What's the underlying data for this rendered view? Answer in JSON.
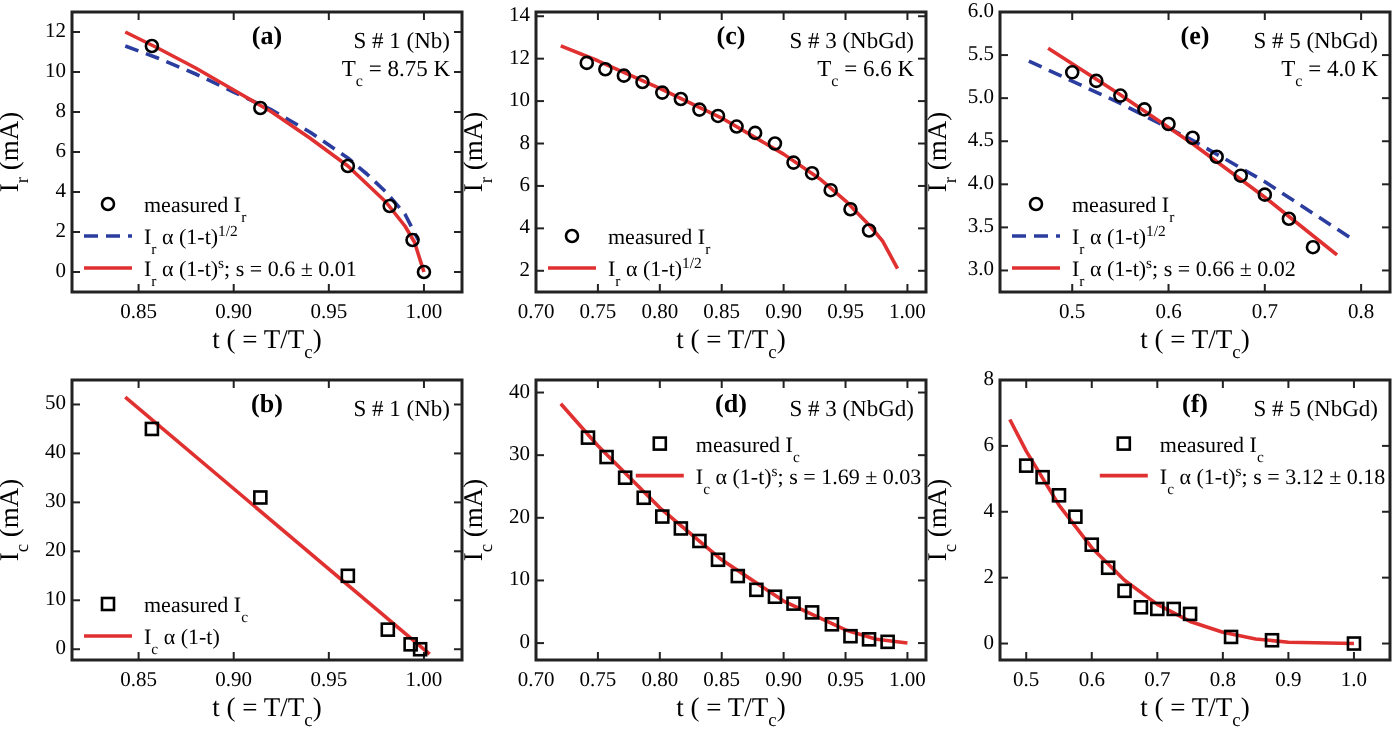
{
  "chart_data": [
    {
      "type": "scatter",
      "xlabel": "t ( = T/T$_{c}$)",
      "ylabel": "I$_{r}$ (mA)",
      "xlim": [
        0.815,
        1.02
      ],
      "ylim": [
        -1,
        13
      ],
      "xticks": [
        0.85,
        {
          "value": 0.9,
          "label": "0.90"
        },
        0.95,
        {
          "value": 1,
          "label": "1.00"
        }
      ],
      "yticks": [
        0,
        2,
        4,
        6,
        8,
        10,
        12
      ],
      "legend": "bottom left",
      "annotations": [
        "(a)",
        "S # 1 (Nb)",
        "T$_{c}$ = 8.75 K"
      ],
      "series": [
        {
          "name": "measured I$_{r}$",
          "marker": "circle",
          "color": "#000000",
          "x": [
            0.857,
            0.914,
            0.96,
            0.982,
            0.994,
            1.0
          ],
          "values": [
            11.3,
            8.2,
            5.3,
            3.3,
            1.6,
            0
          ]
        },
        {
          "name": "I$_{r}$ α (1-t)$^{1/2}$",
          "type": "line",
          "line_style": "dashed",
          "color": "#2b3d9e",
          "x": [
            0.843,
            0.86,
            0.88,
            0.9,
            0.92,
            0.94,
            0.96,
            0.97,
            0.98,
            0.99,
            0.997
          ],
          "values": [
            11.3,
            10.7,
            9.9,
            9.0,
            8.1,
            7.0,
            5.7,
            4.9,
            4.0,
            2.9,
            1.6
          ]
        },
        {
          "name": "I$_{r}$ α (1-t)$^{s}$;  s = 0.6 ± 0.01",
          "type": "line",
          "line_style": "solid",
          "color": "#e03030",
          "x": [
            0.843,
            0.86,
            0.88,
            0.9,
            0.92,
            0.94,
            0.96,
            0.97,
            0.98,
            0.99,
            0.995,
            1.0
          ],
          "values": [
            12.0,
            11.2,
            10.2,
            9.1,
            8.0,
            6.7,
            5.3,
            4.4,
            3.5,
            2.3,
            1.5,
            0
          ]
        }
      ]
    },
    {
      "type": "scatter",
      "xlabel": "t ( = T/T$_{c}$)",
      "ylabel": "I$_{r}$ (mA)",
      "xlim": [
        0.7,
        1.015
      ],
      "ylim": [
        1,
        14.2
      ],
      "xticks": [
        {
          "value": 0.7,
          "label": "0.70"
        },
        0.75,
        {
          "value": 0.8,
          "label": "0.80"
        },
        0.85,
        {
          "value": 0.9,
          "label": "0.90"
        },
        0.95,
        {
          "value": 1,
          "label": "1.00"
        }
      ],
      "yticks": [
        2,
        4,
        6,
        8,
        10,
        12,
        14
      ],
      "legend": "bottom left",
      "annotations": [
        "(c)",
        "S # 3 (NbGd)",
        "T$_{c}$ = 6.6 K"
      ],
      "series": [
        {
          "name": "measured I$_{r}$",
          "marker": "circle",
          "color": "#000000",
          "x": [
            0.741,
            0.756,
            0.771,
            0.786,
            0.802,
            0.817,
            0.832,
            0.847,
            0.862,
            0.877,
            0.893,
            0.908,
            0.923,
            0.938,
            0.954,
            0.969
          ],
          "values": [
            11.8,
            11.5,
            11.2,
            10.9,
            10.4,
            10.1,
            9.6,
            9.3,
            8.8,
            8.5,
            8.0,
            7.1,
            6.6,
            5.8,
            4.9,
            3.9
          ]
        },
        {
          "name": "I$_{r}$ α (1-t)$^{1/2}$",
          "type": "line",
          "line_style": "solid",
          "color": "#e03030",
          "x": [
            0.72,
            0.75,
            0.8,
            0.85,
            0.9,
            0.93,
            0.95,
            0.97,
            0.98,
            0.992
          ],
          "values": [
            12.6,
            11.9,
            10.6,
            9.2,
            7.5,
            6.3,
            5.3,
            4.1,
            3.4,
            2.1
          ]
        }
      ]
    },
    {
      "type": "scatter",
      "xlabel": "t ( = T/T$_{c}$)",
      "ylabel": "I$_{r}$ (mA)",
      "xlim": [
        0.425,
        0.83
      ],
      "ylim": [
        2.75,
        6.0
      ],
      "xticks": [
        0.5,
        0.6,
        0.7,
        0.8
      ],
      "yticks": [
        {
          "value": 3,
          "label": "3.0"
        },
        3.5,
        {
          "value": 4,
          "label": "4.0"
        },
        4.5,
        {
          "value": 5,
          "label": "5.0"
        },
        5.5,
        {
          "value": 6,
          "label": "6.0"
        }
      ],
      "legend": "bottom left",
      "annotations": [
        "(e)",
        "S # 5 (NbGd)",
        "T$_{c}$ = 4.0 K"
      ],
      "series": [
        {
          "name": "measured I$_{r}$",
          "marker": "circle",
          "color": "#000000",
          "x": [
            0.5,
            0.525,
            0.55,
            0.575,
            0.6,
            0.625,
            0.65,
            0.675,
            0.7,
            0.725,
            0.75
          ],
          "values": [
            5.3,
            5.2,
            5.03,
            4.87,
            4.7,
            4.54,
            4.32,
            4.1,
            3.88,
            3.6,
            3.27
          ]
        },
        {
          "name": "I$_{r}$ α (1-t)$^{1/2}$",
          "type": "line",
          "line_style": "dashed",
          "color": "#2b3d9e",
          "x": [
            0.455,
            0.55,
            0.625,
            0.7,
            0.79
          ],
          "values": [
            5.43,
            4.94,
            4.51,
            4.03,
            3.37
          ]
        },
        {
          "name": "I$_{r}$ α (1-t)$^{s}$;  s = 0.66 ± 0.02",
          "type": "line",
          "line_style": "solid",
          "color": "#e03030",
          "x": [
            0.475,
            0.55,
            0.625,
            0.7,
            0.775
          ],
          "values": [
            5.58,
            5.04,
            4.47,
            3.85,
            3.18
          ]
        }
      ]
    },
    {
      "type": "scatter",
      "xlabel": "t ( = T/T$_{c}$)",
      "ylabel": "I$_{c}$ (mA)",
      "xlim": [
        0.815,
        1.02
      ],
      "ylim": [
        -2.2,
        55
      ],
      "xticks": [
        0.85,
        {
          "value": 0.9,
          "label": "0.90"
        },
        0.95,
        {
          "value": 1,
          "label": "1.00"
        }
      ],
      "yticks": [
        0,
        10,
        20,
        30,
        40,
        50
      ],
      "legend": "bottom left",
      "annotations": [
        "(b)",
        "S # 1 (Nb)"
      ],
      "series": [
        {
          "name": "measured I$_{c}$",
          "marker": "square",
          "color": "#000000",
          "x": [
            0.857,
            0.914,
            0.96,
            0.981,
            0.993,
            0.998
          ],
          "values": [
            45,
            31,
            15,
            4,
            1,
            0
          ]
        },
        {
          "name": "I$_{c}$ α (1-t)",
          "type": "line",
          "line_style": "solid",
          "color": "#e03030",
          "x": [
            0.843,
            1.003
          ],
          "values": [
            51.5,
            -1
          ]
        }
      ]
    },
    {
      "type": "scatter",
      "xlabel": "t ( = T/T$_{c}$)",
      "ylabel": "I$_{c}$ (mA)",
      "xlim": [
        0.7,
        1.015
      ],
      "ylim": [
        -2.7,
        42
      ],
      "xticks": [
        {
          "value": 0.7,
          "label": "0.70"
        },
        0.75,
        {
          "value": 0.8,
          "label": "0.80"
        },
        0.85,
        {
          "value": 0.9,
          "label": "0.90"
        },
        0.95,
        {
          "value": 1,
          "label": "1.00"
        }
      ],
      "yticks": [
        0,
        10,
        20,
        30,
        40
      ],
      "legend": "top right",
      "annotations": [
        "(d)",
        "S # 3 (NbGd)"
      ],
      "series": [
        {
          "name": "measured I$_{c}$",
          "marker": "square",
          "color": "#000000",
          "x": [
            0.742,
            0.757,
            0.772,
            0.787,
            0.802,
            0.817,
            0.832,
            0.847,
            0.863,
            0.878,
            0.893,
            0.908,
            0.923,
            0.939,
            0.954,
            0.969,
            0.984
          ],
          "values": [
            32.8,
            29.7,
            26.4,
            23.2,
            20.2,
            18.3,
            16.3,
            13.3,
            10.7,
            8.5,
            7.4,
            6.3,
            4.9,
            3.0,
            1.1,
            0.6,
            0.2
          ]
        },
        {
          "name": "I$_{c}$ α (1-t)$^{s}$;  s = 1.69 ± 0.03",
          "type": "line",
          "line_style": "solid",
          "color": "#e03030",
          "x": [
            0.72,
            0.75,
            0.8,
            0.85,
            0.9,
            0.95,
            0.975,
            1.0
          ],
          "values": [
            38.2,
            31.5,
            21.6,
            13.3,
            6.7,
            2.1,
            0.6,
            0
          ]
        }
      ]
    },
    {
      "type": "scatter",
      "xlabel": "t ( = T/T$_{c}$)",
      "ylabel": "I$_{c}$ (mA)",
      "xlim": [
        0.46,
        1.055
      ],
      "ylim": [
        -0.5,
        8
      ],
      "xticks": [
        0.5,
        0.6,
        0.7,
        0.8,
        0.9,
        {
          "value": 1,
          "label": "1.0"
        }
      ],
      "yticks": [
        0,
        2,
        4,
        6,
        8
      ],
      "legend": "top right",
      "annotations": [
        "(f)",
        "S # 5 (NbGd)"
      ],
      "series": [
        {
          "name": "measured I$_{c}$",
          "marker": "square",
          "color": "#000000",
          "x": [
            0.5,
            0.525,
            0.55,
            0.575,
            0.6,
            0.625,
            0.65,
            0.675,
            0.7,
            0.725,
            0.75,
            0.8125,
            0.875,
            1.0
          ],
          "values": [
            5.4,
            5.05,
            4.5,
            3.85,
            3.0,
            2.3,
            1.6,
            1.1,
            1.05,
            1.05,
            0.9,
            0.2,
            0.1,
            0
          ]
        },
        {
          "name": "I$_{c}$ α (1-t)$^{s}$;  s = 3.12 ± 0.18",
          "type": "line",
          "line_style": "solid",
          "color": "#e03030",
          "x": [
            0.475,
            0.5,
            0.55,
            0.6,
            0.65,
            0.7,
            0.75,
            0.8,
            0.85,
            0.9,
            1.0
          ],
          "values": [
            6.8,
            5.84,
            4.2,
            2.91,
            1.92,
            1.19,
            0.67,
            0.34,
            0.14,
            0.04,
            0
          ]
        }
      ]
    }
  ]
}
